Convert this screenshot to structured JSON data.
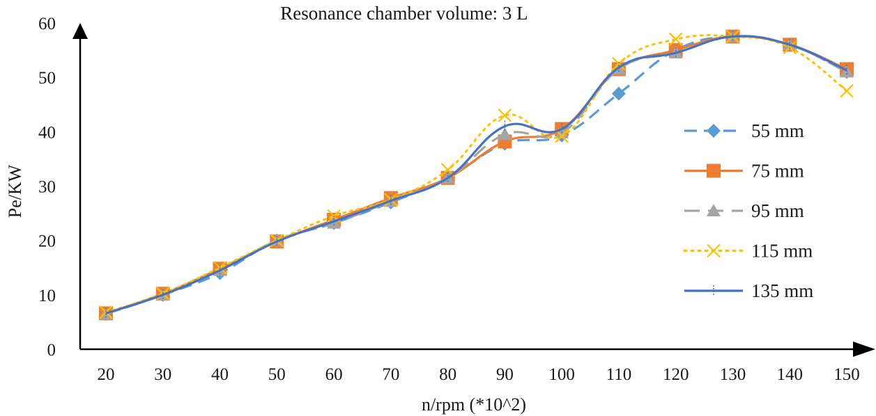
{
  "chart_data": {
    "type": "line",
    "title": "Resonance chamber volume: 3 L",
    "xlabel": "n/rpm (*10^2)",
    "ylabel": "Pe/KW",
    "categories": [
      "20",
      "30",
      "40",
      "50",
      "60",
      "70",
      "80",
      "90",
      "100",
      "110",
      "120",
      "130",
      "140",
      "150"
    ],
    "ylim": [
      0,
      60
    ],
    "yticks": [
      "0",
      "10",
      "20",
      "30",
      "40",
      "50",
      "60"
    ],
    "legend_position": "right",
    "series": [
      {
        "name": "55 mm",
        "color": "#5b9bd5",
        "marker": "diamond",
        "dash": "dash",
        "values": [
          6.5,
          10,
          14,
          20,
          23.2,
          27,
          31.5,
          37.8,
          39.3,
          47,
          55,
          57.5,
          56,
          51
        ]
      },
      {
        "name": "75 mm",
        "color": "#ed7d31",
        "marker": "square",
        "dash": "solid",
        "values": [
          6.6,
          10.2,
          14.8,
          19.8,
          23.8,
          27.8,
          31.5,
          38.2,
          40.5,
          51.5,
          55,
          57.5,
          56,
          51.5
        ]
      },
      {
        "name": "95 mm",
        "color": "#a5a5a5",
        "marker": "triangle",
        "dash": "longdash",
        "values": [
          6.5,
          10,
          14.5,
          20,
          23.2,
          27.2,
          31.5,
          39.5,
          39.8,
          51.5,
          54.5,
          57.5,
          56,
          51
        ]
      },
      {
        "name": "115 mm",
        "color": "#ffc000",
        "marker": "x",
        "dash": "dot",
        "values": [
          6.8,
          10.2,
          15,
          20,
          24.5,
          27.5,
          33,
          43,
          39.2,
          52.5,
          57,
          57.5,
          55.5,
          47.5
        ]
      },
      {
        "name": "135 mm",
        "color": "#4472c4",
        "marker": "plus",
        "dash": "solid",
        "values": [
          6.6,
          10,
          14.5,
          19.8,
          23.5,
          27.3,
          31.5,
          41,
          40.5,
          51.8,
          54.5,
          57.5,
          56,
          51.3
        ]
      }
    ]
  }
}
